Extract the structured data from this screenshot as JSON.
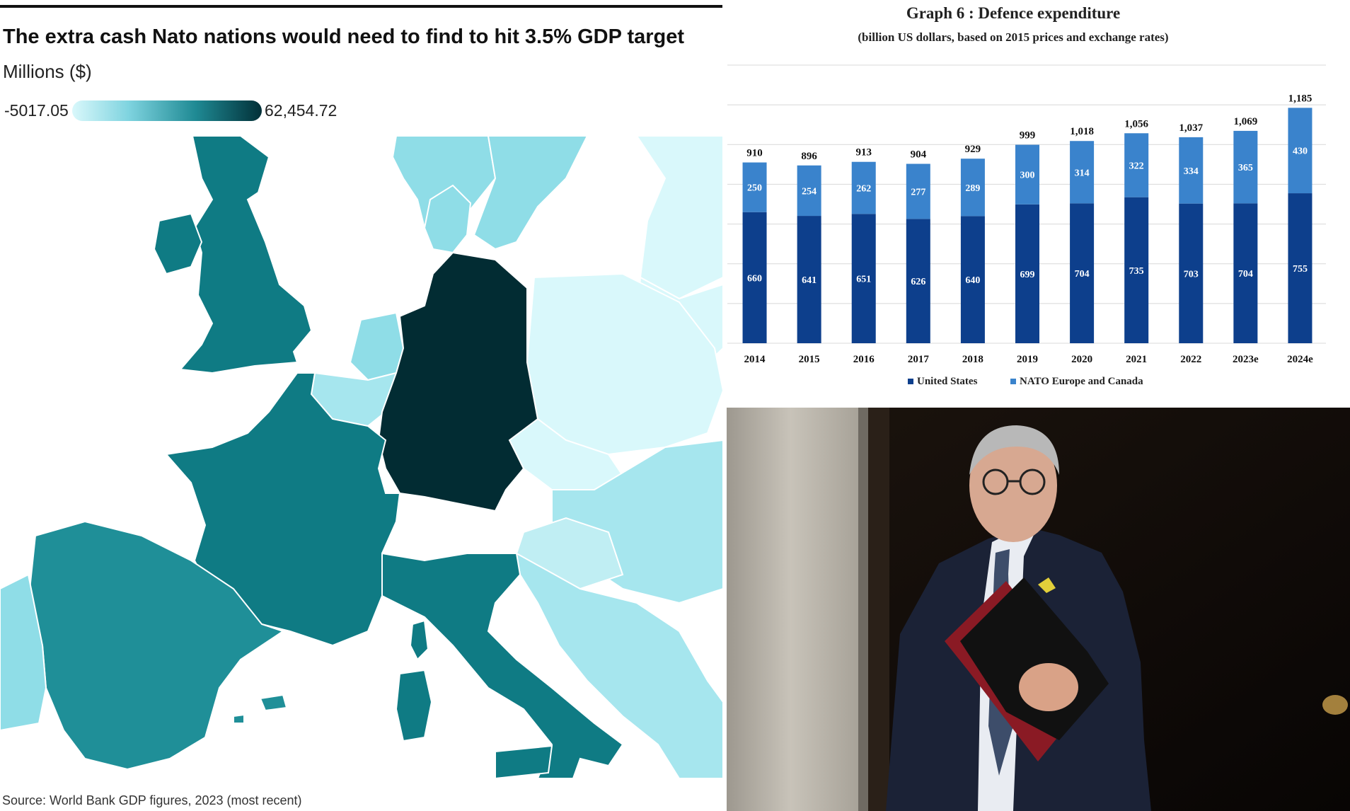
{
  "map": {
    "title": "The extra cash Nato nations would need to find to hit 3.5% GDP target",
    "subtitle": "Millions ($)",
    "legend_min": "-5017.05",
    "legend_max": "62,454.72",
    "source": "Source: World Bank GDP figures, 2023 (most recent)",
    "colors": {
      "low": "#d9f8fb",
      "light": "#8fdde7",
      "mid": "#0f7b84",
      "spain": "#1f8f98",
      "high": "#022c33"
    }
  },
  "chart_data": {
    "type": "bar",
    "stacked": true,
    "title": "Graph 6 : Defence expenditure",
    "subtitle": "(billion US dollars, based on 2015 prices and exchange rates)",
    "categories": [
      "2014",
      "2015",
      "2016",
      "2017",
      "2018",
      "2019",
      "2020",
      "2021",
      "2022",
      "2023e",
      "2024e"
    ],
    "totals": [
      "910",
      "896",
      "913",
      "904",
      "929",
      "999",
      "1,018",
      "1,056",
      "1,037",
      "1,069",
      "1,185"
    ],
    "series": [
      {
        "name": "United States",
        "color": "#0d3f8c",
        "values": [
          660,
          641,
          651,
          626,
          640,
          699,
          704,
          735,
          703,
          704,
          755
        ]
      },
      {
        "name": "NATO Europe and Canada",
        "color": "#3a83cc",
        "values": [
          250,
          254,
          262,
          277,
          289,
          300,
          314,
          322,
          334,
          365,
          430
        ]
      }
    ],
    "ylim": [
      0,
      1400
    ],
    "grid": true,
    "legend_position": "bottom"
  },
  "photo": {
    "colors": {
      "door": "#120c08",
      "column": "#bdb8ae",
      "suit": "#1b2236",
      "folder": "#111111",
      "folder_red": "#8a1a24"
    }
  }
}
